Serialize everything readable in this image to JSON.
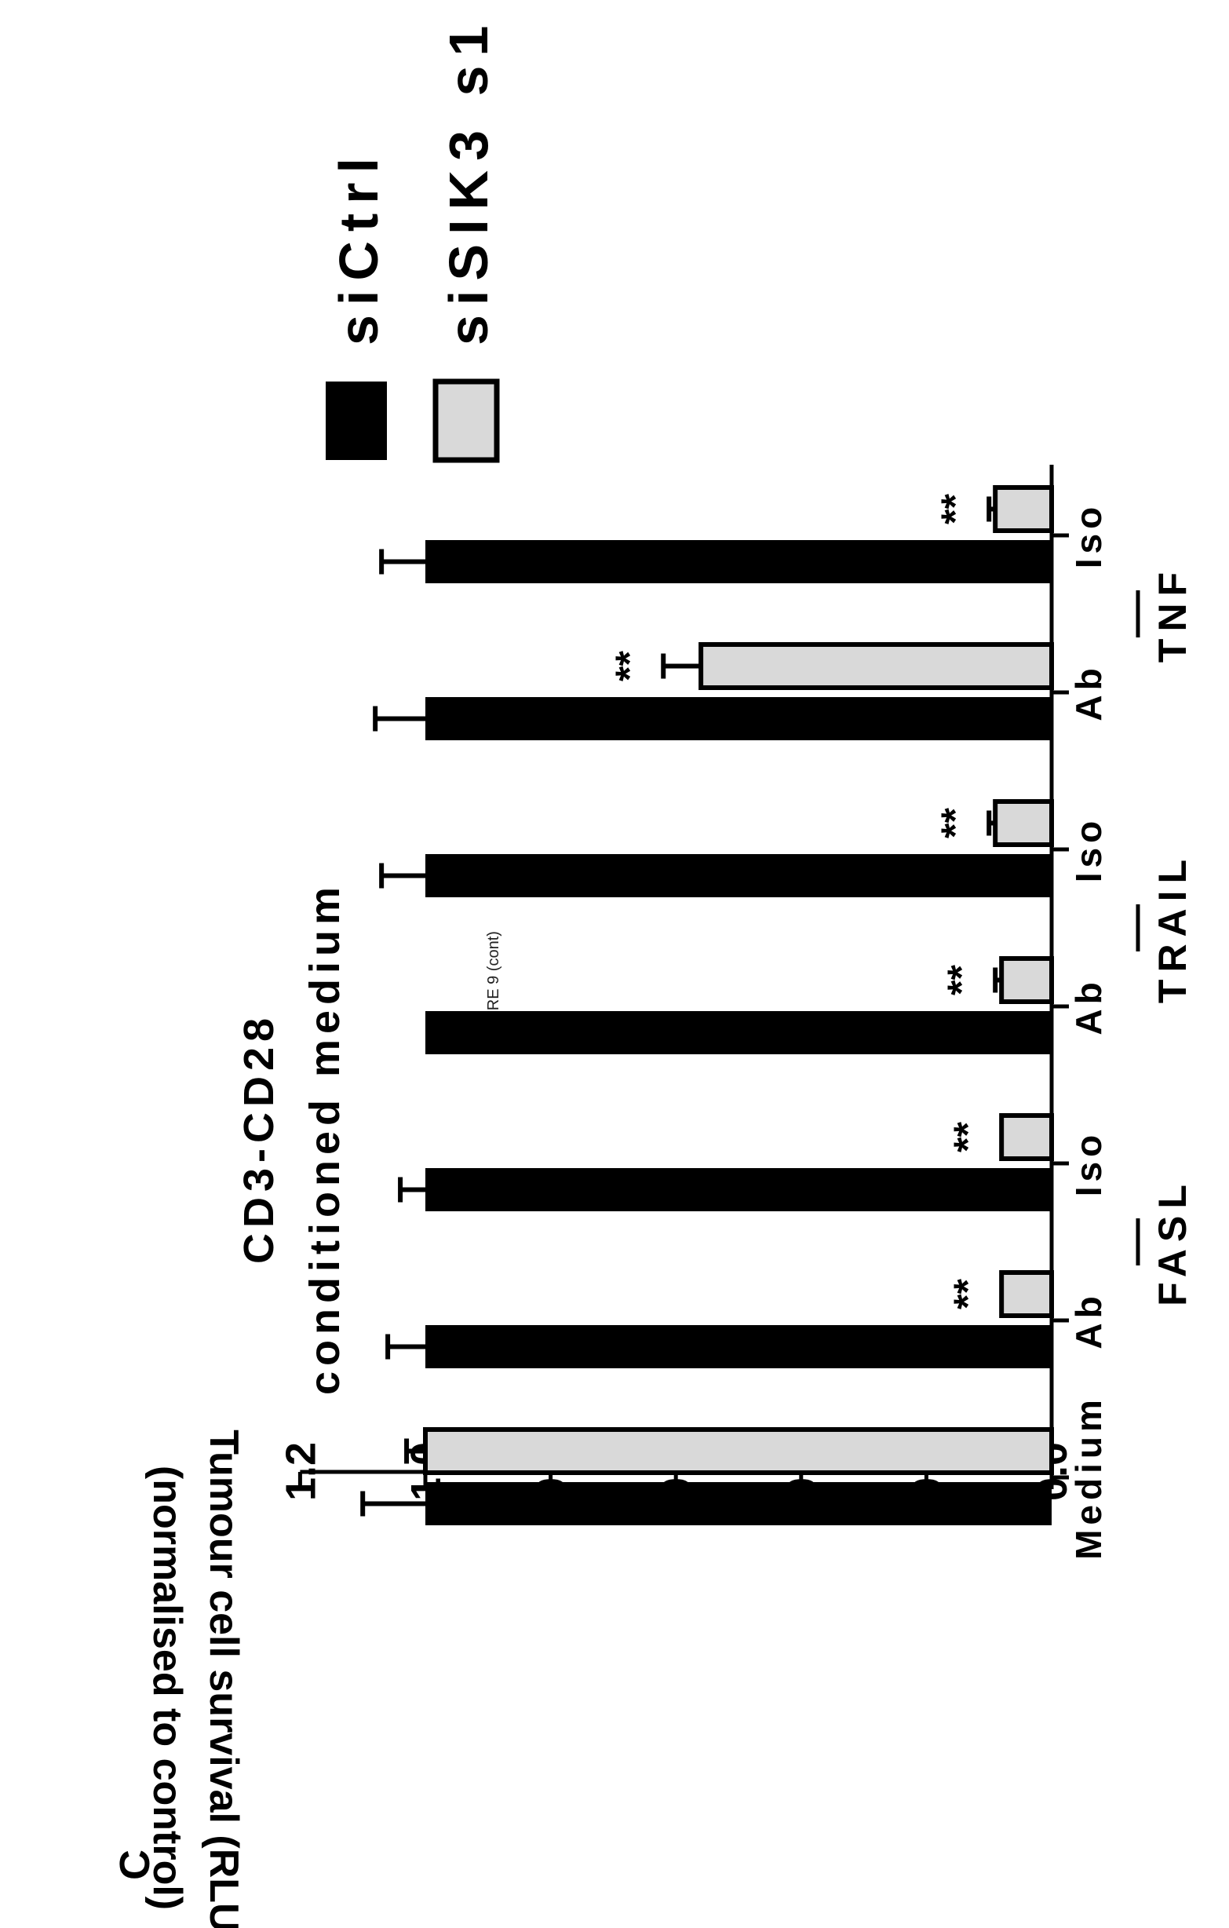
{
  "figure_caption": "FIGURE 9 (cont)",
  "panel_label": "C",
  "chart_data": {
    "type": "bar",
    "orientation": "rotated 90 degrees counter-clockwise",
    "title": [
      "CD3-CD28",
      "conditioned medium"
    ],
    "ylabel": [
      "Tumour cell survival (RLU)",
      "(normalised to control)"
    ],
    "ylim": [
      0,
      1.2
    ],
    "yticks": [
      "0.0",
      "0.2",
      "0.4",
      "0.6",
      "0.8",
      "1.0",
      "1.2"
    ],
    "categories": [
      "Iso",
      "Ab",
      "Iso",
      "Ab",
      "Iso",
      "Ab",
      "Medium"
    ],
    "groups": [
      {
        "label": "TNF",
        "categories": [
          0,
          1
        ]
      },
      {
        "label": "TRAIL",
        "categories": [
          2,
          3
        ]
      },
      {
        "label": "FASL",
        "categories": [
          4,
          5
        ]
      }
    ],
    "series": [
      {
        "name": "siCtrl",
        "color": "#000000",
        "values": [
          1.0,
          1.0,
          1.0,
          1.0,
          1.0,
          1.0,
          1.0
        ],
        "errors": [
          0.07,
          0.08,
          0.07,
          0.0,
          0.04,
          0.06,
          0.1
        ]
      },
      {
        "name": "siSIK3 s1",
        "color": "#d9d9d9",
        "values": [
          0.09,
          0.56,
          0.09,
          0.08,
          0.08,
          0.08,
          1.0
        ],
        "errors": [
          0.01,
          0.06,
          0.01,
          0.01,
          0.0,
          0.0,
          0.03
        ]
      }
    ],
    "significance": [
      "**",
      "**",
      "**",
      "**",
      "**",
      "**",
      ""
    ],
    "legend": [
      "siCtrl",
      "siSIK3 s1"
    ],
    "legend_position": "top-right"
  }
}
